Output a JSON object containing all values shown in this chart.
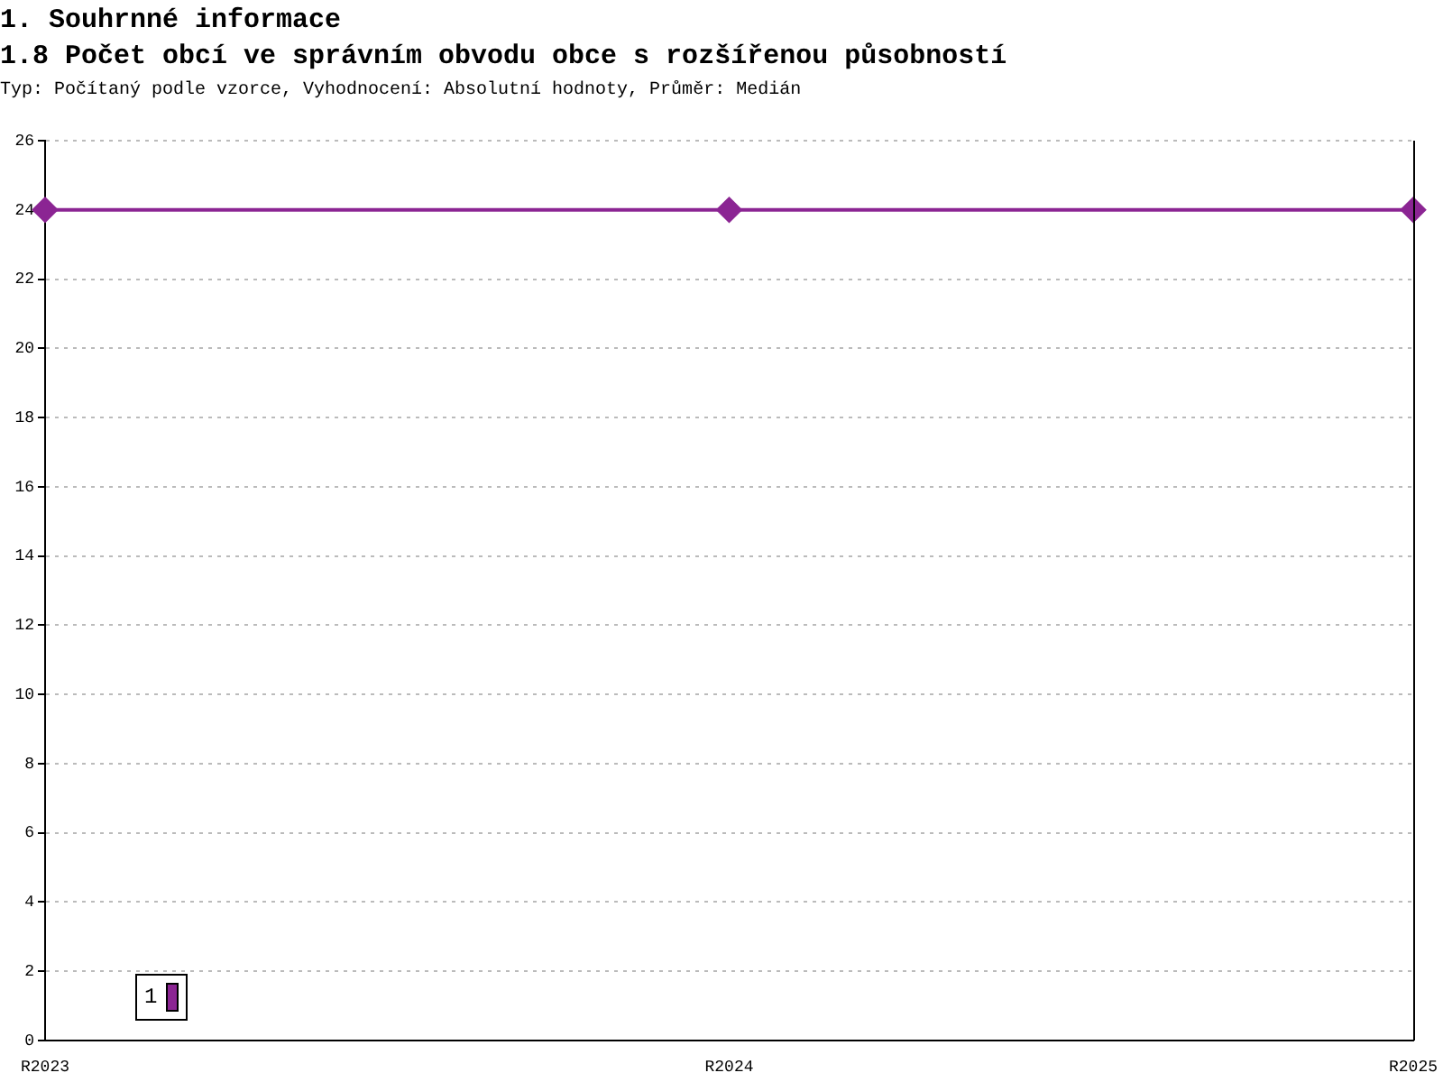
{
  "chart_data": {
    "type": "line",
    "title": "1. Souhrnné informace",
    "subtitle": "1.8 Počet obcí ve správním obvodu obce s rozšířenou působností",
    "annotations": [
      "Typ: Počítaný podle vzorce, Vyhodnocení: Absolutní hodnoty, Průměr: Medián"
    ],
    "categories": [
      "R2023",
      null,
      null,
      null,
      null,
      "R2024",
      null,
      null,
      null,
      null,
      "R2025"
    ],
    "series": [
      {
        "name": "1",
        "color": "#8b2593",
        "values": [
          24,
          null,
          null,
          null,
          null,
          24,
          null,
          null,
          null,
          null,
          24
        ]
      }
    ],
    "ylim": [
      0,
      26
    ],
    "yticks": [
      0,
      2,
      4,
      6,
      8,
      10,
      12,
      14,
      16,
      18,
      20,
      22,
      24,
      26
    ],
    "grid": "y",
    "legend": "bottom left",
    "marker": "diamond",
    "line_style": "solid"
  }
}
